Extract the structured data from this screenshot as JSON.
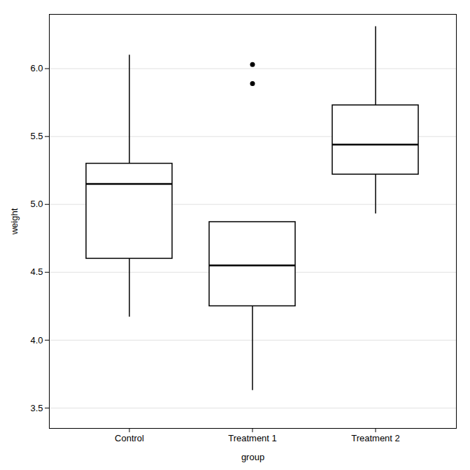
{
  "chart_data": {
    "type": "box",
    "xlabel": "group",
    "ylabel": "weight",
    "categories": [
      "Control",
      "Treatment 1",
      "Treatment 2"
    ],
    "boxes": [
      {
        "q1": 4.6,
        "median": 5.15,
        "q3": 5.3,
        "whisker_low": 4.17,
        "whisker_high": 6.1,
        "outliers": []
      },
      {
        "q1": 4.25,
        "median": 4.55,
        "q3": 4.87,
        "whisker_low": 3.63,
        "whisker_high": 4.87,
        "outliers": [
          5.89,
          6.03
        ]
      },
      {
        "q1": 5.22,
        "median": 5.44,
        "q3": 5.73,
        "whisker_low": 4.93,
        "whisker_high": 6.31,
        "outliers": []
      }
    ],
    "ylim": [
      3.35,
      6.4
    ],
    "yticks": [
      3.5,
      {
        "value": 4,
        "label": "4.0"
      },
      4.5,
      {
        "value": 5,
        "label": "5.0"
      },
      5.5,
      {
        "value": 6,
        "label": "6.0"
      }
    ],
    "grid": true
  }
}
